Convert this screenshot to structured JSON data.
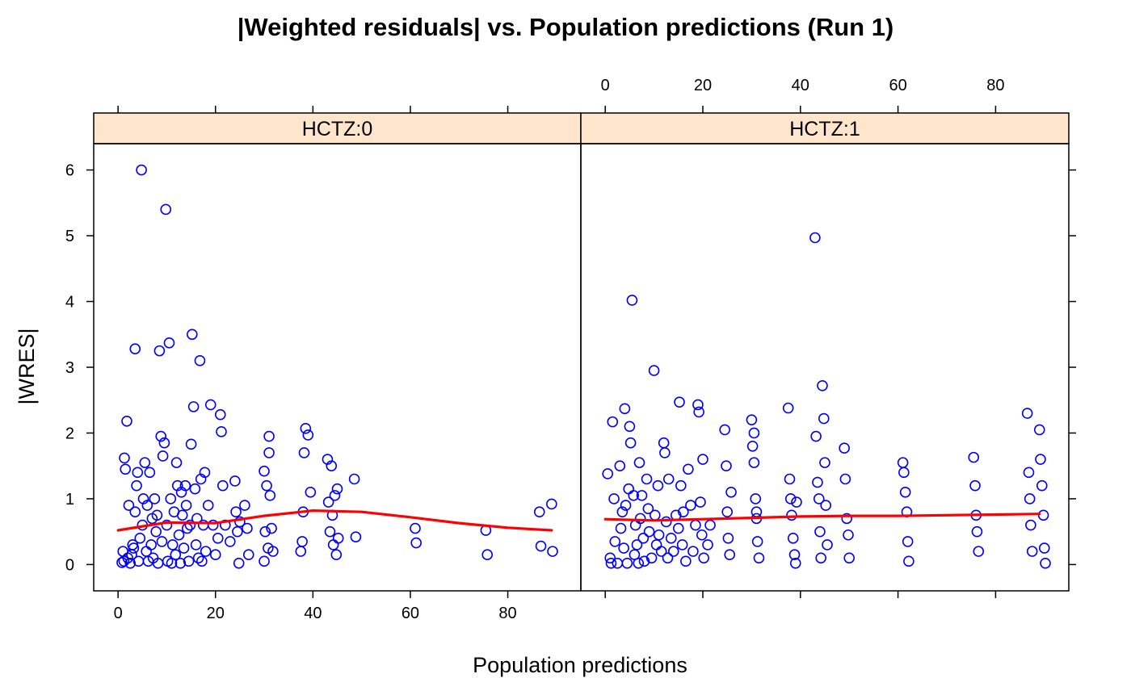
{
  "chart_data": {
    "type": "scatter",
    "title": "|Weighted residuals| vs. Population predictions (Run 1)",
    "xlabel": "Population predictions",
    "ylabel": "|WRES|",
    "xlim": [
      -5,
      95
    ],
    "ylim": [
      -0.4,
      6.4
    ],
    "xticks": [
      0,
      20,
      40,
      60,
      80
    ],
    "yticks": [
      0,
      1,
      2,
      3,
      4,
      5,
      6
    ],
    "grid": false,
    "colors": {
      "points": "#0000ff",
      "smooth": "#ff0000",
      "strip": "#ffe5cc"
    },
    "panels": [
      {
        "label": "HCTZ:0",
        "points": [
          [
            0.8,
            0.03
          ],
          [
            1,
            0.2
          ],
          [
            1.2,
            0.05
          ],
          [
            1.3,
            1.62
          ],
          [
            1.5,
            1.45
          ],
          [
            1.8,
            2.18
          ],
          [
            2,
            0.1
          ],
          [
            2.2,
            0.9
          ],
          [
            2.5,
            0.02
          ],
          [
            2.8,
            0.15
          ],
          [
            3,
            0.3
          ],
          [
            3.2,
            0.25
          ],
          [
            3.5,
            0.8
          ],
          [
            3.8,
            1.2
          ],
          [
            4,
            1.4
          ],
          [
            4.2,
            0.05
          ],
          [
            4.5,
            0.4
          ],
          [
            3.5,
            3.28
          ],
          [
            4.8,
            6.0
          ],
          [
            5,
            0.6
          ],
          [
            5.2,
            1.0
          ],
          [
            5.5,
            1.55
          ],
          [
            5.8,
            0.2
          ],
          [
            6,
            0.9
          ],
          [
            6.2,
            0.05
          ],
          [
            6.5,
            1.4
          ],
          [
            6.8,
            0.3
          ],
          [
            7,
            0.7
          ],
          [
            7.2,
            0.1
          ],
          [
            7.5,
            1.0
          ],
          [
            7.8,
            0.5
          ],
          [
            8,
            0.75
          ],
          [
            8.2,
            0.02
          ],
          [
            8.5,
            3.25
          ],
          [
            8.8,
            1.95
          ],
          [
            9,
            0.35
          ],
          [
            9.2,
            1.65
          ],
          [
            9.5,
            1.85
          ],
          [
            9.8,
            5.4
          ],
          [
            10,
            0.6
          ],
          [
            10.2,
            0.05
          ],
          [
            10.5,
            3.37
          ],
          [
            10.8,
            1.0
          ],
          [
            11,
            0.02
          ],
          [
            11.2,
            0.3
          ],
          [
            11.5,
            0.8
          ],
          [
            11.8,
            0.15
          ],
          [
            12,
            1.55
          ],
          [
            12.2,
            1.2
          ],
          [
            12.5,
            0.45
          ],
          [
            12.8,
            0.02
          ],
          [
            13,
            1.1
          ],
          [
            13.2,
            0.75
          ],
          [
            13.5,
            0.25
          ],
          [
            13.8,
            1.2
          ],
          [
            14,
            0.9
          ],
          [
            14.2,
            0.55
          ],
          [
            14.5,
            0.05
          ],
          [
            14.8,
            0.6
          ],
          [
            15,
            1.83
          ],
          [
            15.2,
            3.5
          ],
          [
            15.5,
            2.4
          ],
          [
            15.8,
            1.15
          ],
          [
            16,
            0.3
          ],
          [
            16.2,
            0.7
          ],
          [
            16.5,
            0.1
          ],
          [
            16.8,
            3.1
          ],
          [
            17,
            1.3
          ],
          [
            17.2,
            0.05
          ],
          [
            17.5,
            0.6
          ],
          [
            17.8,
            1.4
          ],
          [
            18,
            0.2
          ],
          [
            18.5,
            0.9
          ],
          [
            19,
            2.43
          ],
          [
            19.5,
            0.6
          ],
          [
            20,
            0.15
          ],
          [
            20.5,
            0.4
          ],
          [
            21,
            2.28
          ],
          [
            21.2,
            2.02
          ],
          [
            21.5,
            1.2
          ],
          [
            22,
            0.6
          ],
          [
            23,
            0.35
          ],
          [
            24,
            1.27
          ],
          [
            24.2,
            0.8
          ],
          [
            24.5,
            0.5
          ],
          [
            24.8,
            0.02
          ],
          [
            25,
            0.65
          ],
          [
            26,
            0.9
          ],
          [
            26.5,
            0.55
          ],
          [
            26.8,
            0.15
          ],
          [
            30,
            0.05
          ],
          [
            30.2,
            0.5
          ],
          [
            30.5,
            1.2
          ],
          [
            30.8,
            0.25
          ],
          [
            31,
            1.95
          ],
          [
            31.2,
            1.05
          ],
          [
            31.5,
            0.55
          ],
          [
            31.8,
            0.2
          ],
          [
            30,
            1.42
          ],
          [
            31,
            1.7
          ],
          [
            37.5,
            0.2
          ],
          [
            37.8,
            0.35
          ],
          [
            38,
            0.8
          ],
          [
            38.2,
            1.7
          ],
          [
            38.5,
            2.07
          ],
          [
            39,
            1.97
          ],
          [
            39.5,
            1.1
          ],
          [
            43,
            1.6
          ],
          [
            43.2,
            0.95
          ],
          [
            43.5,
            0.5
          ],
          [
            43.8,
            1.5
          ],
          [
            44,
            0.75
          ],
          [
            44.2,
            0.3
          ],
          [
            44.5,
            1.05
          ],
          [
            44.8,
            0.15
          ],
          [
            45,
            1.15
          ],
          [
            45.2,
            0.4
          ],
          [
            48.5,
            1.3
          ],
          [
            48.8,
            0.42
          ],
          [
            61,
            0.55
          ],
          [
            61.2,
            0.33
          ],
          [
            75.5,
            0.52
          ],
          [
            75.8,
            0.15
          ],
          [
            86.5,
            0.8
          ],
          [
            86.8,
            0.28
          ],
          [
            89,
            0.92
          ],
          [
            89.2,
            0.2
          ]
        ],
        "smooth": [
          [
            0,
            0.52
          ],
          [
            10,
            0.64
          ],
          [
            20,
            0.63
          ],
          [
            30,
            0.74
          ],
          [
            40,
            0.82
          ],
          [
            50,
            0.8
          ],
          [
            60,
            0.72
          ],
          [
            70,
            0.63
          ],
          [
            80,
            0.56
          ],
          [
            89,
            0.52
          ]
        ]
      },
      {
        "label": "HCTZ:1",
        "points": [
          [
            0.5,
            1.38
          ],
          [
            1,
            0.1
          ],
          [
            1.2,
            0.02
          ],
          [
            1.5,
            2.17
          ],
          [
            1.8,
            1.0
          ],
          [
            2,
            0.35
          ],
          [
            2.5,
            0.02
          ],
          [
            3,
            1.5
          ],
          [
            3.2,
            0.55
          ],
          [
            3.5,
            0.8
          ],
          [
            3.8,
            0.25
          ],
          [
            4,
            2.37
          ],
          [
            4.2,
            0.9
          ],
          [
            4.5,
            0.02
          ],
          [
            4.8,
            1.15
          ],
          [
            5,
            2.1
          ],
          [
            5.2,
            1.85
          ],
          [
            5.5,
            4.02
          ],
          [
            5.8,
            1.05
          ],
          [
            6,
            0.15
          ],
          [
            6.2,
            0.6
          ],
          [
            6.5,
            0.3
          ],
          [
            6.8,
            0.02
          ],
          [
            7,
            1.55
          ],
          [
            7.2,
            0.7
          ],
          [
            7.5,
            1.05
          ],
          [
            7.8,
            0.4
          ],
          [
            8,
            0.05
          ],
          [
            8.5,
            1.3
          ],
          [
            8.8,
            0.85
          ],
          [
            9,
            0.5
          ],
          [
            9.5,
            0.1
          ],
          [
            10,
            2.95
          ],
          [
            10.2,
            0.75
          ],
          [
            10.5,
            0.3
          ],
          [
            10.8,
            1.2
          ],
          [
            11,
            0.45
          ],
          [
            11.5,
            0.2
          ],
          [
            12,
            1.85
          ],
          [
            12.2,
            1.7
          ],
          [
            12.5,
            0.65
          ],
          [
            12.8,
            0.1
          ],
          [
            13,
            1.3
          ],
          [
            13.5,
            0.4
          ],
          [
            14,
            0.2
          ],
          [
            14.5,
            0.75
          ],
          [
            15,
            0.55
          ],
          [
            15.2,
            2.47
          ],
          [
            15.5,
            1.2
          ],
          [
            15.8,
            0.3
          ],
          [
            16,
            0.8
          ],
          [
            16.5,
            0.05
          ],
          [
            17,
            1.45
          ],
          [
            17.5,
            0.9
          ],
          [
            18,
            0.2
          ],
          [
            18.5,
            0.6
          ],
          [
            19,
            2.43
          ],
          [
            19.2,
            2.32
          ],
          [
            19.5,
            0.95
          ],
          [
            19.8,
            0.45
          ],
          [
            20,
            1.6
          ],
          [
            20.2,
            0.1
          ],
          [
            21,
            0.3
          ],
          [
            21.5,
            0.6
          ],
          [
            24.5,
            2.05
          ],
          [
            24.8,
            1.5
          ],
          [
            25,
            0.8
          ],
          [
            25.2,
            0.4
          ],
          [
            25.5,
            0.15
          ],
          [
            25.8,
            1.1
          ],
          [
            30,
            2.2
          ],
          [
            30.2,
            1.8
          ],
          [
            30.5,
            1.55
          ],
          [
            30.8,
            1.0
          ],
          [
            31,
            0.7
          ],
          [
            31.2,
            0.35
          ],
          [
            31.5,
            0.1
          ],
          [
            30.5,
            2.0
          ],
          [
            31,
            0.8
          ],
          [
            37.5,
            2.38
          ],
          [
            37.8,
            1.3
          ],
          [
            38,
            1.0
          ],
          [
            38.2,
            0.75
          ],
          [
            38.5,
            0.4
          ],
          [
            38.8,
            0.15
          ],
          [
            39,
            0.02
          ],
          [
            39.2,
            0.95
          ],
          [
            43,
            4.97
          ],
          [
            43.2,
            1.95
          ],
          [
            43.5,
            1.25
          ],
          [
            43.8,
            1.0
          ],
          [
            44,
            0.5
          ],
          [
            44.2,
            0.1
          ],
          [
            44.5,
            2.72
          ],
          [
            44.8,
            2.22
          ],
          [
            45,
            1.55
          ],
          [
            45.2,
            0.9
          ],
          [
            45.5,
            0.3
          ],
          [
            49,
            1.77
          ],
          [
            49.2,
            1.3
          ],
          [
            49.5,
            0.7
          ],
          [
            49.8,
            0.45
          ],
          [
            50,
            0.1
          ],
          [
            61,
            1.55
          ],
          [
            61.2,
            1.4
          ],
          [
            61.5,
            1.1
          ],
          [
            61.8,
            0.8
          ],
          [
            62,
            0.35
          ],
          [
            62.2,
            0.05
          ],
          [
            75.5,
            1.63
          ],
          [
            75.8,
            1.2
          ],
          [
            76,
            0.75
          ],
          [
            76.2,
            0.5
          ],
          [
            76.5,
            0.2
          ],
          [
            86.5,
            2.3
          ],
          [
            86.8,
            1.4
          ],
          [
            87,
            1.0
          ],
          [
            87.2,
            0.6
          ],
          [
            87.5,
            0.2
          ],
          [
            89,
            2.05
          ],
          [
            89.2,
            1.6
          ],
          [
            89.5,
            1.2
          ],
          [
            89.8,
            0.75
          ],
          [
            90,
            0.25
          ],
          [
            90.2,
            0.02
          ]
        ],
        "smooth": [
          [
            0,
            0.69
          ],
          [
            10,
            0.67
          ],
          [
            20,
            0.69
          ],
          [
            30,
            0.71
          ],
          [
            40,
            0.73
          ],
          [
            50,
            0.74
          ],
          [
            60,
            0.74
          ],
          [
            70,
            0.75
          ],
          [
            80,
            0.76
          ],
          [
            89,
            0.77
          ]
        ]
      }
    ]
  }
}
